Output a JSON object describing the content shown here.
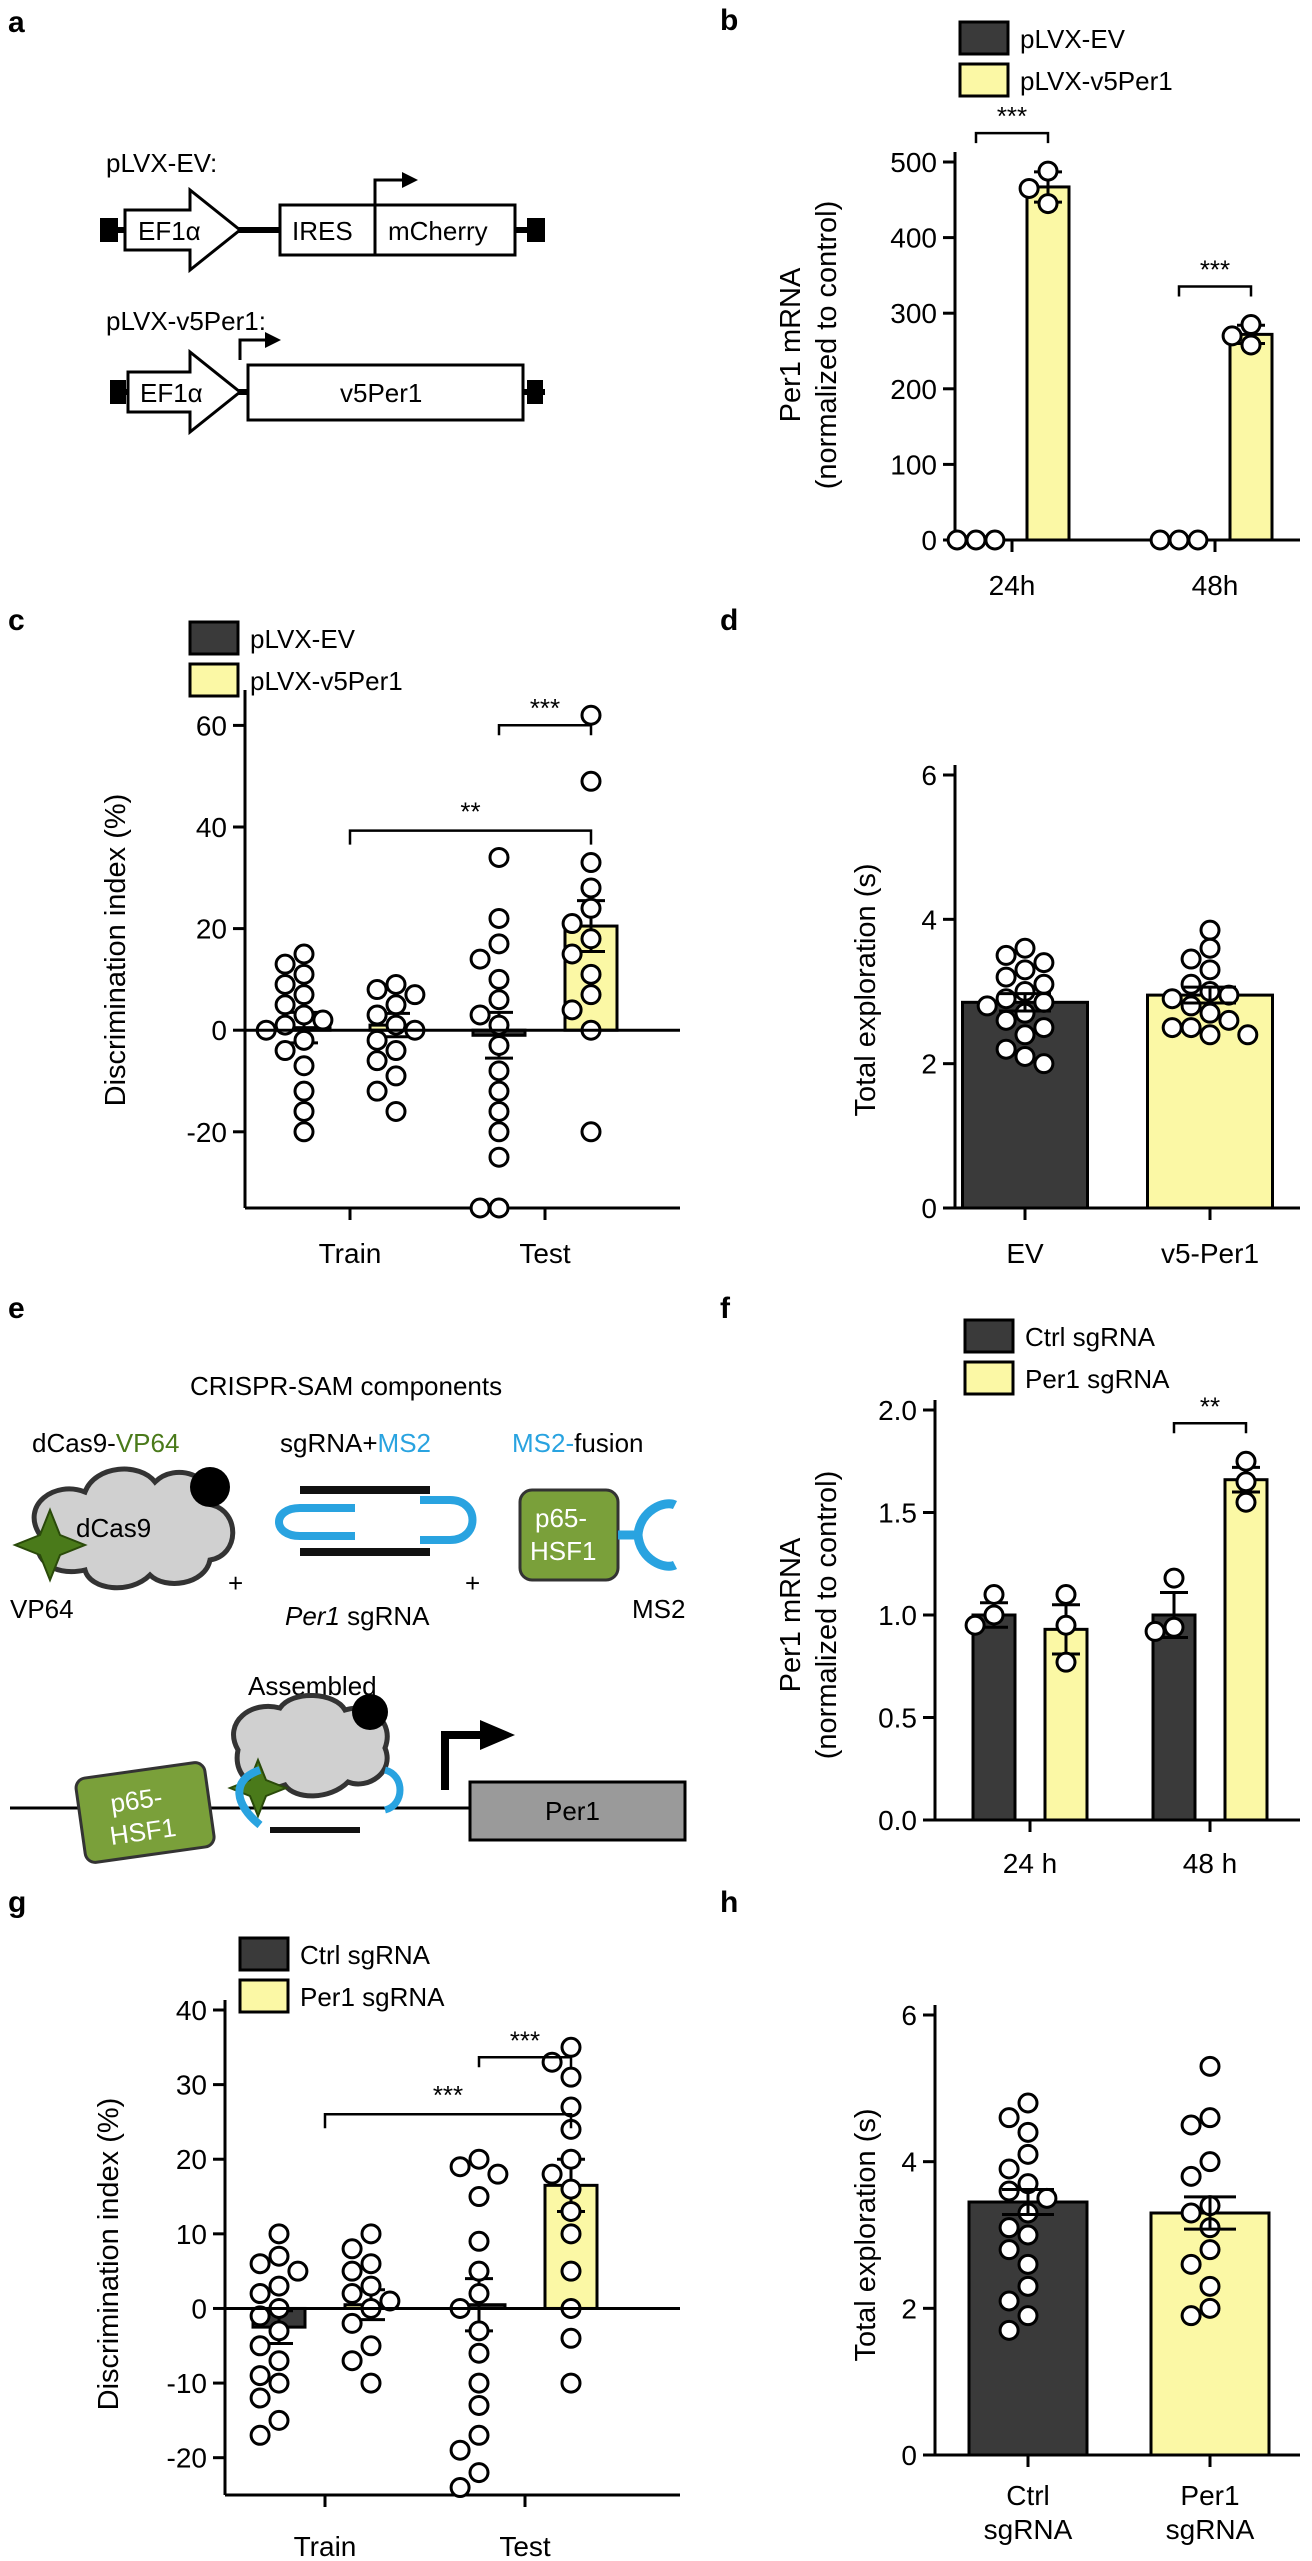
{
  "colors": {
    "ev": "#3a3a3a",
    "per1": "#fbf8a5",
    "green": "#4a7a1a",
    "blue": "#29a3e0"
  },
  "panels": {
    "a": {
      "letter": "a",
      "ev_title": "pLVX-EV:",
      "per1_title": "pLVX-v5Per1:",
      "promoter": "EF1α",
      "ires": "IRES",
      "mcherry": "mCherry",
      "v5per1": "v5Per1"
    },
    "e": {
      "letter": "e",
      "title": "CRISPR-SAM components",
      "dcas9_label_a": "dCas9-",
      "dcas9_label_b": "VP64",
      "sgrna_label_a": "sgRNA+",
      "sgrna_label_b": "MS2",
      "fusion_label_a": "MS2-",
      "fusion_label_b": "fusion",
      "dcas9": "dCas9",
      "vp64": "VP64",
      "plus": "+",
      "per1_italic": "Per1",
      "sgrna_suffix": " sgRNA",
      "p65_line1": "p65-",
      "p65_line2": "HSF1",
      "ms2": "MS2",
      "assembled": "Assembled",
      "gene": "Per1"
    }
  },
  "chart_data": [
    {
      "id": "b",
      "letter": "b",
      "type": "bar",
      "legend": [
        "pLVX-EV",
        "pLVX-v5Per1"
      ],
      "categories": [
        "24h",
        "48h"
      ],
      "ylabel_line1": "Per1 mRNA",
      "ylabel_line2": "(normalized to control)",
      "ylim": [
        0,
        500
      ],
      "yticks": [
        0,
        100,
        200,
        300,
        400,
        500
      ],
      "series": [
        {
          "name": "pLVX-EV",
          "values": [
            1,
            1
          ],
          "sem": [
            0,
            0
          ],
          "points": [
            [
              0,
              0,
              0
            ],
            [
              0,
              0,
              0
            ]
          ]
        },
        {
          "name": "pLVX-v5Per1",
          "values": [
            467,
            272
          ],
          "sem": [
            20,
            12
          ],
          "points": [
            [
              445,
              465,
              488
            ],
            [
              258,
              270,
              285
            ]
          ]
        }
      ],
      "significance": [
        {
          "label": "***",
          "category": 0
        },
        {
          "label": "***",
          "category": 1
        }
      ]
    },
    {
      "id": "c",
      "letter": "c",
      "type": "bar",
      "legend": [
        "pLVX-EV",
        "pLVX-v5Per1"
      ],
      "categories": [
        "Train",
        "Test"
      ],
      "ylabel": "Discrimination index (%)",
      "ylim": [
        -35,
        65
      ],
      "yticks": [
        -20,
        0,
        20,
        40,
        60
      ],
      "series": [
        {
          "name": "pLVX-EV",
          "values": [
            0.5,
            -1
          ],
          "sem": [
            3,
            4.5
          ],
          "points": [
            [
              15,
              13,
              11,
              9,
              7,
              5,
              3,
              2,
              1,
              0,
              -2,
              -4,
              -7,
              -12,
              -16,
              -20
            ],
            [
              34,
              22,
              17,
              14,
              10,
              6,
              3,
              1,
              -3,
              -8,
              -12,
              -16,
              -20,
              -25,
              -35,
              -35
            ]
          ]
        },
        {
          "name": "pLVX-v5Per1",
          "values": [
            1,
            20.5
          ],
          "sem": [
            2.3,
            5
          ],
          "points": [
            [
              9,
              8,
              7,
              5,
              3,
              1,
              0,
              -2,
              -4,
              -6,
              -9,
              -12,
              -16
            ],
            [
              62,
              49,
              33,
              28,
              24,
              21,
              18,
              15,
              11,
              7,
              4,
              0,
              -20
            ]
          ]
        }
      ],
      "significance": [
        {
          "label": "***",
          "kind": "within-test"
        },
        {
          "label": "**",
          "kind": "train-vs-test"
        }
      ]
    },
    {
      "id": "d",
      "letter": "d",
      "type": "bar",
      "categories": [
        "EV",
        "v5-Per1"
      ],
      "ylabel": "Total exploration (s)",
      "ylim": [
        0,
        6
      ],
      "yticks": [
        0,
        2,
        4,
        6
      ],
      "values": [
        2.85,
        2.95
      ],
      "sem": [
        0.12,
        0.11
      ],
      "points": [
        [
          3.6,
          3.5,
          3.4,
          3.3,
          3.2,
          3.1,
          3.0,
          2.9,
          2.85,
          2.8,
          2.7,
          2.6,
          2.5,
          2.4,
          2.2,
          2.1,
          2.0
        ],
        [
          3.85,
          3.6,
          3.45,
          3.3,
          3.1,
          3.0,
          2.95,
          2.9,
          2.8,
          2.7,
          2.6,
          2.5,
          2.5,
          2.4,
          2.4
        ]
      ]
    },
    {
      "id": "f",
      "letter": "f",
      "type": "bar",
      "legend": [
        "Ctrl sgRNA",
        "Per1 sgRNA"
      ],
      "categories": [
        "24 h",
        "48 h"
      ],
      "ylabel_line1": "Per1 mRNA",
      "ylabel_line2": "(normalized to control)",
      "ylim": [
        0,
        2.0
      ],
      "yticks": [
        "0.0",
        "0.5",
        "1.0",
        "1.5",
        "2.0"
      ],
      "series": [
        {
          "name": "Ctrl sgRNA",
          "values": [
            1.0,
            1.0
          ],
          "sem": [
            0.06,
            0.11
          ],
          "points": [
            [
              1.1,
              1.0,
              0.95
            ],
            [
              1.18,
              0.94,
              0.92
            ]
          ]
        },
        {
          "name": "Per1 sgRNA",
          "values": [
            0.93,
            1.66
          ],
          "sem": [
            0.12,
            0.06
          ],
          "points": [
            [
              1.1,
              0.95,
              0.77
            ],
            [
              1.75,
              1.65,
              1.55
            ]
          ]
        }
      ],
      "significance": [
        {
          "label": "**",
          "category": 1
        }
      ]
    },
    {
      "id": "g",
      "letter": "g",
      "type": "bar",
      "legend": [
        "Ctrl sgRNA",
        "Per1 sgRNA"
      ],
      "categories": [
        "Train",
        "Test"
      ],
      "ylabel": "Discrimination index (%)",
      "ylim": [
        -25,
        40
      ],
      "yticks": [
        -20,
        -10,
        0,
        10,
        20,
        30,
        40
      ],
      "series": [
        {
          "name": "Ctrl sgRNA",
          "values": [
            -2.5,
            0.5
          ],
          "sem": [
            2.2,
            3.5
          ],
          "points": [
            [
              10,
              7,
              6,
              5,
              3,
              2,
              0,
              -1,
              -3,
              -5,
              -7,
              -9,
              -10,
              -12,
              -15,
              -17
            ],
            [
              20,
              19,
              18,
              15,
              9,
              5,
              2,
              0,
              -3,
              -6,
              -10,
              -13,
              -17,
              -19,
              -22,
              -24
            ]
          ]
        },
        {
          "name": "Per1 sgRNA",
          "values": [
            0.5,
            16.5
          ],
          "sem": [
            2.0,
            3.5
          ],
          "points": [
            [
              10,
              8,
              6,
              5,
              3,
              2,
              1,
              0,
              -2,
              -5,
              -7,
              -10
            ],
            [
              35,
              33,
              31,
              27,
              24,
              20,
              18,
              16,
              13,
              10,
              5,
              0,
              -4,
              -10
            ]
          ]
        }
      ],
      "significance": [
        {
          "label": "***",
          "kind": "within-test"
        },
        {
          "label": "***",
          "kind": "train-vs-test"
        }
      ]
    },
    {
      "id": "h",
      "letter": "h",
      "type": "bar",
      "categories": [
        "Ctrl\nsgRNA",
        "Per1\nsgRNA"
      ],
      "cat_line1": [
        "Ctrl",
        "Per1"
      ],
      "cat_line2": [
        "sgRNA",
        "sgRNA"
      ],
      "ylabel": "Total exploration (s)",
      "ylim": [
        0,
        6
      ],
      "yticks": [
        0,
        2,
        4,
        6
      ],
      "values": [
        3.45,
        3.3
      ],
      "sem": [
        0.17,
        0.22
      ],
      "points": [
        [
          4.8,
          4.6,
          4.4,
          4.1,
          3.9,
          3.7,
          3.6,
          3.5,
          3.3,
          3.1,
          3.0,
          2.8,
          2.6,
          2.3,
          2.1,
          1.9,
          1.7
        ],
        [
          5.3,
          4.6,
          4.5,
          4.0,
          3.8,
          3.4,
          3.3,
          3.1,
          2.8,
          2.6,
          2.3,
          2.0,
          1.9
        ]
      ]
    }
  ]
}
